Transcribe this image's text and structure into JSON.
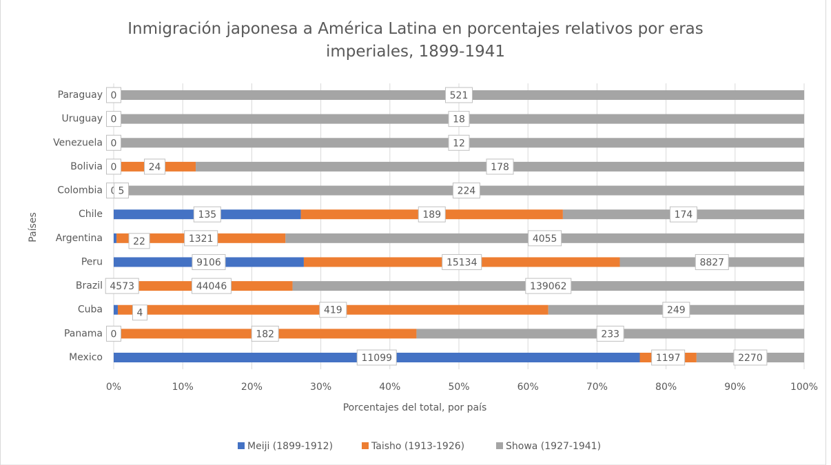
{
  "chart_data": {
    "type": "bar",
    "orientation": "horizontal",
    "stacking": "percent",
    "title": "Inmigración japonesa a América Latina  en porcentajes relativos por eras imperiales, 1899-1941",
    "x_label": "Porcentajes del total, por país",
    "y_label": "Países",
    "categories": [
      "Mexico",
      "Panama",
      "Cuba",
      "Brazil",
      "Peru",
      "Argentina",
      "Chile",
      "Colombia",
      "Bolivia",
      "Venezuela",
      "Uruguay",
      "Paraguay"
    ],
    "series": [
      {
        "name": "Meiji (1899-1912)",
        "color": "#4472c4",
        "values": [
          11099,
          0,
          4,
          4573,
          9106,
          22,
          135,
          0,
          0,
          0,
          0,
          0
        ]
      },
      {
        "name": "Taisho (1913-1926)",
        "color": "#ed7d31",
        "values": [
          1197,
          182,
          419,
          44046,
          15134,
          1321,
          189,
          5,
          24,
          null,
          null,
          null
        ]
      },
      {
        "name": "Showa (1927-1941)",
        "color": "#a5a5a5",
        "values": [
          2270,
          233,
          249,
          139062,
          8827,
          4055,
          174,
          224,
          178,
          12,
          18,
          521
        ]
      }
    ],
    "xlim": [
      0,
      100
    ],
    "xticks": [
      {
        "value": 0,
        "label": "0%"
      },
      {
        "value": 10,
        "label": "10%"
      },
      {
        "value": 20,
        "label": "20%"
      },
      {
        "value": 30,
        "label": "30%"
      },
      {
        "value": 40,
        "label": "40%"
      },
      {
        "value": 50,
        "label": "50%"
      },
      {
        "value": 60,
        "label": "60%"
      },
      {
        "value": 70,
        "label": "70%"
      },
      {
        "value": 80,
        "label": "80%"
      },
      {
        "value": 90,
        "label": "90%"
      },
      {
        "value": 100,
        "label": "100%"
      }
    ],
    "grid": true,
    "legend": "bottom"
  }
}
